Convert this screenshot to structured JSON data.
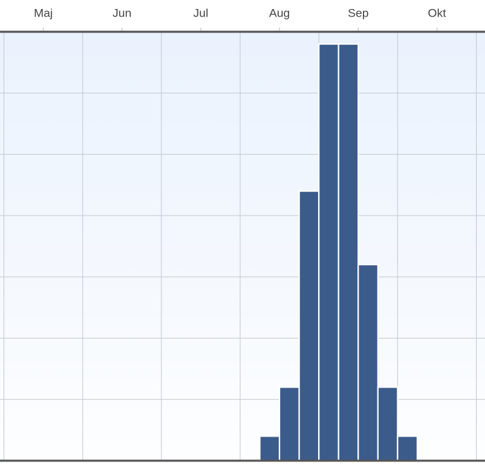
{
  "chart_data": {
    "type": "histogram",
    "bins": [
      3.25,
      3.5,
      3.75,
      4,
      4.25,
      4.5,
      4.75,
      5,
      5.25
    ],
    "values": [
      1,
      3,
      11,
      17,
      17,
      8,
      3,
      1
    ],
    "color": "#3b5b8b",
    "xlim": [
      -0.05,
      6.11
    ],
    "xticks": [
      {
        "value": 0.5,
        "label": "Maj"
      },
      {
        "value": 1.5,
        "label": "Jun"
      },
      {
        "value": 2.5,
        "label": "Jul"
      },
      {
        "value": 3.5,
        "label": "Aug"
      },
      {
        "value": 4.5,
        "label": "Sep"
      },
      {
        "value": 5.5,
        "label": "Okt"
      }
    ],
    "ylim": [
      0,
      17.5
    ],
    "yticks": [
      0,
      2.5,
      5,
      7.5,
      10,
      12.5,
      15,
      17.5
    ],
    "grid": true
  }
}
